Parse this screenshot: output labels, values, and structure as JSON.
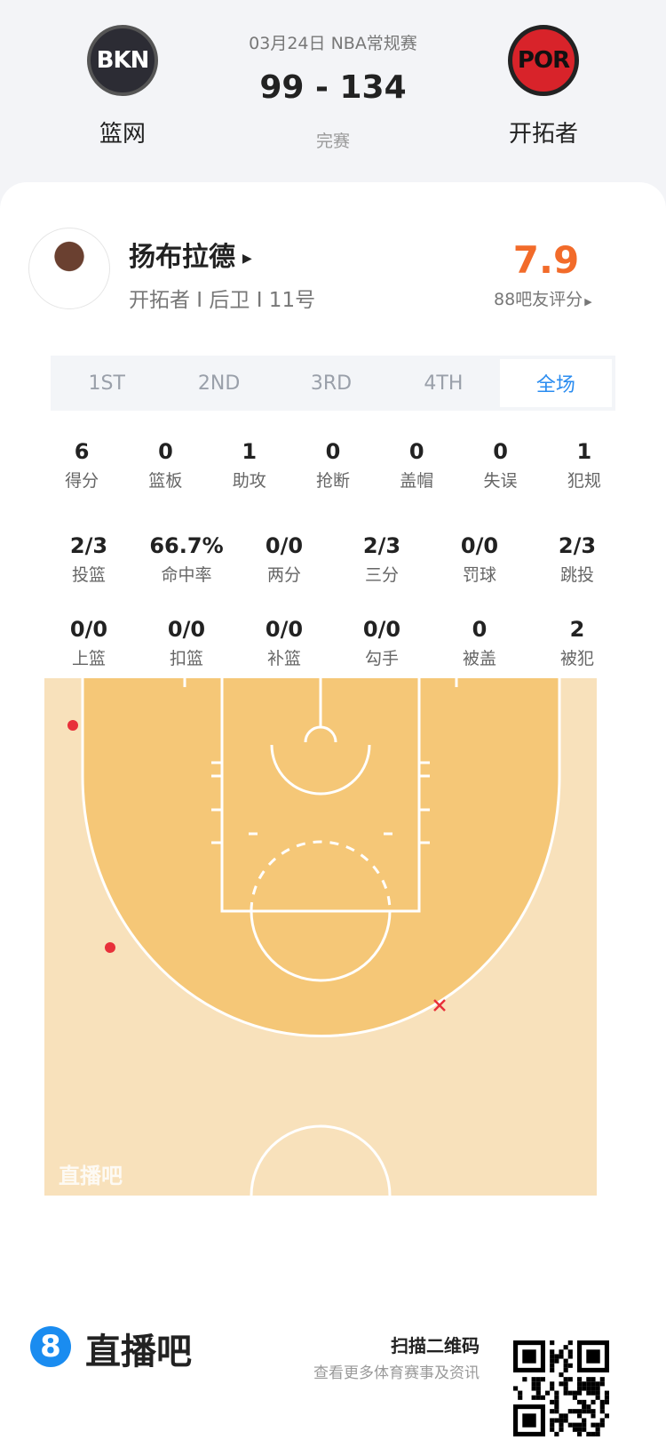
{
  "match": {
    "date_league": "03月24日 NBA常规赛",
    "score": "99 - 134",
    "status": "完赛",
    "home": {
      "name": "篮网",
      "abbr": "BKN",
      "color": "#2c2c34"
    },
    "away": {
      "name": "开拓者",
      "abbr": "POR",
      "color": "#d8232a"
    }
  },
  "player": {
    "name": "扬布拉德",
    "info": "开拓者 I 后卫 I 11号",
    "rating": "7.9",
    "rating_label": "88吧友评分",
    "rating_color": "#f26b2a"
  },
  "tabs": [
    "1ST",
    "2ND",
    "3RD",
    "4TH",
    "全场"
  ],
  "active_tab": "全场",
  "stats_rows": [
    [
      {
        "v": "6",
        "l": "得分"
      },
      {
        "v": "0",
        "l": "篮板"
      },
      {
        "v": "1",
        "l": "助攻"
      },
      {
        "v": "0",
        "l": "抢断"
      },
      {
        "v": "0",
        "l": "盖帽"
      },
      {
        "v": "0",
        "l": "失误"
      },
      {
        "v": "1",
        "l": "犯规"
      }
    ],
    [
      {
        "v": "2/3",
        "l": "投篮"
      },
      {
        "v": "66.7%",
        "l": "命中率"
      },
      {
        "v": "0/0",
        "l": "两分"
      },
      {
        "v": "2/3",
        "l": "三分"
      },
      {
        "v": "0/0",
        "l": "罚球"
      },
      {
        "v": "2/3",
        "l": "跳投"
      }
    ],
    [
      {
        "v": "0/0",
        "l": "上篮"
      },
      {
        "v": "0/0",
        "l": "扣篮"
      },
      {
        "v": "0/0",
        "l": "补篮"
      },
      {
        "v": "0/0",
        "l": "勾手"
      },
      {
        "v": "0",
        "l": "被盖"
      },
      {
        "v": "2",
        "l": "被犯"
      }
    ]
  ],
  "shot_chart": {
    "watermark": "直播吧",
    "shots": [
      {
        "result": "made"
      },
      {
        "result": "made"
      },
      {
        "result": "missed"
      }
    ]
  },
  "footer": {
    "brand": "直播吧",
    "brand_digit": "8",
    "scan": "扫描二维码",
    "sub": "查看更多体育赛事及资讯"
  }
}
